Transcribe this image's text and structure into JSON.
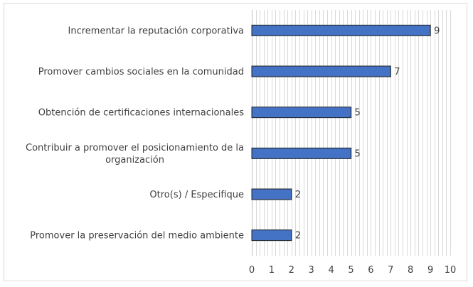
{
  "chart_data": {
    "type": "bar",
    "orientation": "horizontal",
    "categories": [
      [
        "Incrementar la reputación corporativa"
      ],
      [
        "Promover cambios sociales en la comunidad"
      ],
      [
        "Obtención de certificaciones internacionales"
      ],
      [
        "Contribuir a promover el posicionamiento de la",
        "organización"
      ],
      [
        "Otro(s) / Especifique"
      ],
      [
        "Promover la preservación del medio ambiente"
      ]
    ],
    "values": [
      9,
      7,
      5,
      5,
      2,
      2
    ],
    "xlim": [
      0,
      10
    ],
    "x_ticks": [
      0,
      1,
      2,
      3,
      4,
      5,
      6,
      7,
      8,
      9,
      10
    ],
    "minor_grid_step": 0.2,
    "grid": true,
    "data_labels": true,
    "title": "",
    "xlabel": "",
    "ylabel": "",
    "colors": {
      "bar_fill": "#4472c4",
      "bar_edge": "#1f1f1f",
      "grid": "#d9d9d9",
      "axis": "#bfbfbf",
      "text": "#404040"
    }
  }
}
